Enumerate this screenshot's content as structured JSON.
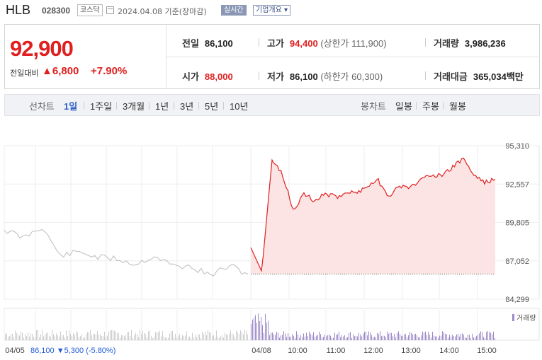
{
  "header": {
    "name": "HLB",
    "code": "028300",
    "market": "코스닥",
    "date": "2024.04.08 기준(장마감)",
    "live_badge": "실시간",
    "corp_button": "기업개요 ▾"
  },
  "price": {
    "current": "92,900",
    "change_label": "전일대비",
    "change": "▲6,800",
    "change_pct": "+7.90%"
  },
  "stats": {
    "prev_label": "전일",
    "prev": "86,100",
    "high_label": "고가",
    "high": "94,400",
    "upper_limit": "(상한가 111,900)",
    "volume_label": "거래량",
    "volume": "3,986,236",
    "open_label": "시가",
    "open": "88,000",
    "low_label": "저가",
    "low": "86,100",
    "lower_limit": "(하한가 60,300)",
    "amount_label": "거래대금",
    "amount": "365,034",
    "amount_unit": "백만"
  },
  "tabs": {
    "line_label": "선차트",
    "line_tabs": [
      "1일",
      "1주일",
      "3개월",
      "1년",
      "3년",
      "5년",
      "10년"
    ],
    "active": "1일",
    "candle_label": "봉차트",
    "candle_tabs": [
      "일봉",
      "주봉",
      "월봉"
    ]
  },
  "colors": {
    "up": "#e02020",
    "down": "#1e5bd6",
    "fill": "#fde4e4",
    "gray_line": "#bbbbbb",
    "volume": "#9c89c8"
  },
  "chart_data": {
    "type": "line",
    "y_ticks": [
      "95,310",
      "92,557",
      "89,805",
      "87,052",
      "84,299"
    ],
    "ylim": [
      84299,
      95310
    ],
    "x_ticks": [
      "04/05",
      "04/08",
      "10:00",
      "11:00",
      "12:00",
      "13:00",
      "14:00",
      "15:00"
    ],
    "prev_day_note": {
      "date": "04/05",
      "close": "86,100",
      "change": "▼5,300",
      "pct": "(-5.80%)"
    },
    "volume_label": "거래량",
    "base_price": 86100,
    "series": [
      {
        "x": [
          "04/05 09:00",
          "04/05 09:30",
          "04/05 10:00",
          "04/05 10:30",
          "04/05 11:00",
          "04/05 11:30",
          "04/05 12:00",
          "04/05 12:30",
          "04/05 13:00",
          "04/05 13:30",
          "04/05 14:00",
          "04/05 14:30",
          "04/05 15:00",
          "04/05 15:30"
        ],
        "values": [
          89300,
          88700,
          89500,
          87400,
          87700,
          87300,
          87200,
          86800,
          87400,
          86700,
          86600,
          86000,
          86700,
          86100
        ]
      },
      {
        "x": [
          "09:00",
          "09:05",
          "09:10",
          "09:20",
          "09:30",
          "09:45",
          "10:00",
          "10:15",
          "10:30",
          "11:00",
          "11:30",
          "12:00",
          "12:20",
          "12:40",
          "13:00",
          "13:20",
          "13:40",
          "14:00",
          "14:20",
          "14:40",
          "15:00",
          "15:10",
          "15:20",
          "15:30"
        ],
        "values": [
          88000,
          86200,
          94300,
          93200,
          90700,
          91900,
          91300,
          91900,
          91600,
          92000,
          91900,
          92500,
          92800,
          91700,
          92400,
          92300,
          92900,
          93300,
          93100,
          93800,
          94400,
          93200,
          92700,
          92900
        ]
      }
    ]
  }
}
